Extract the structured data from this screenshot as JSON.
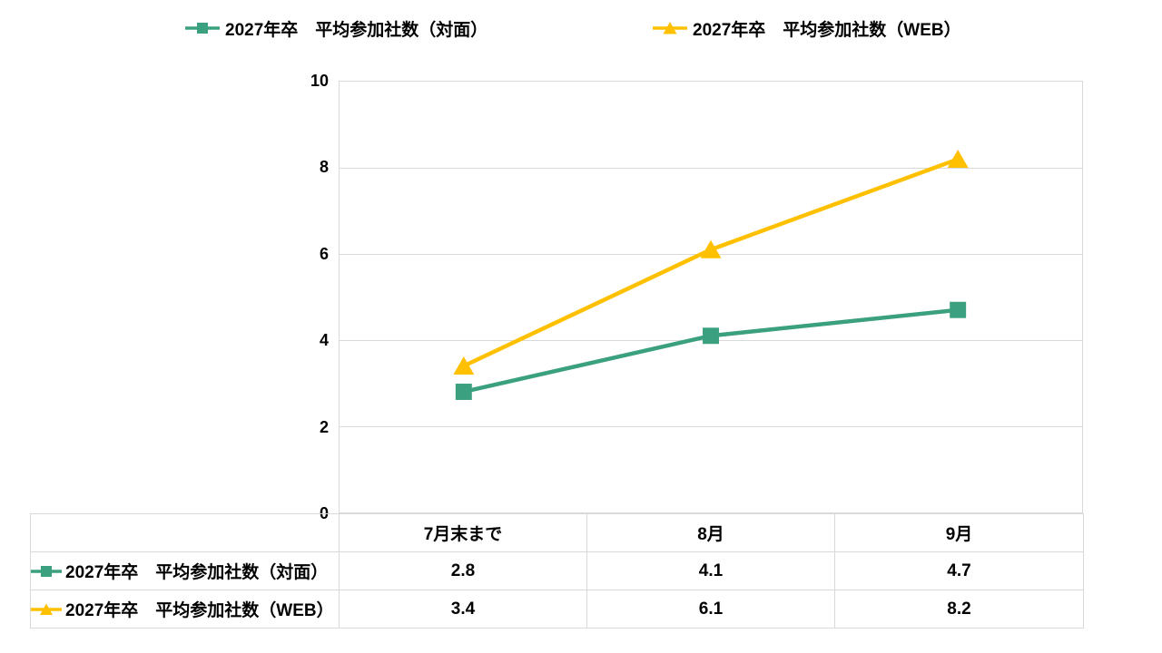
{
  "colors": {
    "series_taimen": "#3AA07F",
    "series_web": "#FFC000",
    "grid": "#D9D9D9",
    "text": "#000000",
    "background": "#FFFFFF"
  },
  "chart_data": {
    "type": "line",
    "categories": [
      "7月末まで",
      "8月",
      "9月"
    ],
    "series": [
      {
        "name": "2027年卒　平均参加社数（対面）",
        "values": [
          2.8,
          4.1,
          4.7
        ],
        "color": "#3AA07F",
        "marker": "square"
      },
      {
        "name": "2027年卒　平均参加社数（WEB）",
        "values": [
          3.4,
          6.1,
          8.2
        ],
        "color": "#FFC000",
        "marker": "triangle"
      }
    ],
    "title": "",
    "xlabel": "",
    "ylabel": "",
    "ylim": [
      0,
      10
    ],
    "yticks": [
      0,
      2,
      4,
      6,
      8,
      10
    ],
    "grid": true,
    "legend_position": "top",
    "data_table_shown": true
  }
}
